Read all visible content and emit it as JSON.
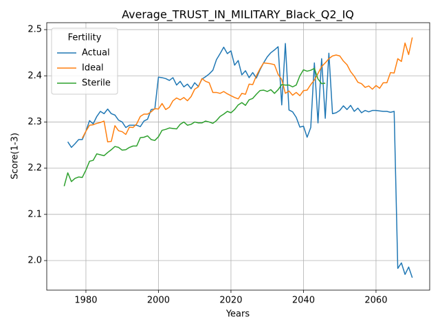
{
  "chart_data": {
    "type": "line",
    "title": "Average_TRUST_IN_MILITARY_Black_Q2_IQ",
    "xlabel": "Years",
    "ylabel": "Score(1-3)",
    "legend_title": "Fertility",
    "legend": "upper left",
    "grid": true,
    "x": [
      1974,
      1975,
      1976,
      1977,
      1978,
      1979,
      1980,
      1981,
      1982,
      1983,
      1984,
      1985,
      1986,
      1987,
      1988,
      1989,
      1990,
      1991,
      1992,
      1993,
      1994,
      1995,
      1996,
      1997,
      1998,
      1999,
      2000,
      2001,
      2002,
      2003,
      2004,
      2005,
      2006,
      2007,
      2008,
      2009,
      2010,
      2011,
      2012,
      2013,
      2014,
      2015,
      2016,
      2017,
      2018,
      2019,
      2020,
      2021,
      2022,
      2023,
      2024,
      2025,
      2026,
      2027,
      2028,
      2029,
      2030,
      2031,
      2032,
      2033,
      2034,
      2035,
      2036,
      2037,
      2038,
      2039,
      2040,
      2041,
      2042,
      2043,
      2044,
      2045,
      2046,
      2047,
      2048,
      2049,
      2050,
      2051,
      2052,
      2053,
      2054,
      2055,
      2056,
      2057,
      2058,
      2059,
      2060,
      2061,
      2062,
      2063,
      2064,
      2065,
      2066,
      2067,
      2068,
      2069,
      2070
    ],
    "xlim": [
      1969.2,
      2074.8
    ],
    "xticks": [
      1980,
      2000,
      2020,
      2040,
      2060
    ],
    "ylim": [
      1.936,
      2.515
    ],
    "yticks": [
      {
        "value": 2.0,
        "label": "2.0"
      },
      2.1,
      2.2,
      2.3,
      2.4,
      2.5
    ],
    "series": [
      {
        "name": "Actual",
        "color": "#1f77b4",
        "values": [
          null,
          2.257,
          2.245,
          2.253,
          2.262,
          2.262,
          2.28,
          2.303,
          2.296,
          2.312,
          2.323,
          2.318,
          2.328,
          2.318,
          2.315,
          2.304,
          2.3,
          2.288,
          2.293,
          2.293,
          2.293,
          2.29,
          2.302,
          2.306,
          2.327,
          2.328,
          2.397,
          2.396,
          2.394,
          2.39,
          2.396,
          2.38,
          2.388,
          2.376,
          2.382,
          2.372,
          2.385,
          2.377,
          2.393,
          2.398,
          2.404,
          2.412,
          2.435,
          2.448,
          2.462,
          2.448,
          2.454,
          2.423,
          2.433,
          2.402,
          2.411,
          2.396,
          2.407,
          2.395,
          2.413,
          2.428,
          2.441,
          2.45,
          2.456,
          2.463,
          2.337,
          2.47,
          2.326,
          2.322,
          2.31,
          2.289,
          2.291,
          2.267,
          2.288,
          2.428,
          2.298,
          2.437,
          2.308,
          2.449,
          2.318,
          2.32,
          2.325,
          2.335,
          2.327,
          2.336,
          2.323,
          2.33,
          2.32,
          2.325,
          2.322,
          2.325,
          2.325,
          2.324,
          2.323,
          2.323,
          2.321,
          2.323,
          1.983,
          1.995,
          1.97,
          1.986,
          1.963
        ]
      },
      {
        "name": "Ideal",
        "color": "#ff7f0e",
        "values": [
          null,
          null,
          null,
          null,
          null,
          2.265,
          2.28,
          2.293,
          2.294,
          2.297,
          2.299,
          2.302,
          2.257,
          2.258,
          2.292,
          2.281,
          2.279,
          2.273,
          2.289,
          2.288,
          2.296,
          2.312,
          2.317,
          2.317,
          2.322,
          2.329,
          2.328,
          2.34,
          2.327,
          2.332,
          2.346,
          2.352,
          2.348,
          2.353,
          2.346,
          2.355,
          2.371,
          2.376,
          2.394,
          2.388,
          2.385,
          2.364,
          2.364,
          2.362,
          2.366,
          2.361,
          2.357,
          2.353,
          2.35,
          2.362,
          2.36,
          2.382,
          2.381,
          2.4,
          2.415,
          2.428,
          2.427,
          2.426,
          2.424,
          2.403,
          2.392,
          2.362,
          2.367,
          2.358,
          2.364,
          2.357,
          2.368,
          2.369,
          2.381,
          2.391,
          2.405,
          2.42,
          2.428,
          2.437,
          2.443,
          2.445,
          2.443,
          2.432,
          2.424,
          2.409,
          2.399,
          2.386,
          2.383,
          2.375,
          2.378,
          2.371,
          2.379,
          2.373,
          2.385,
          2.385,
          2.407,
          2.406,
          2.437,
          2.431,
          2.471,
          2.446,
          2.483
        ]
      },
      {
        "name": "Sterile",
        "color": "#2ca02c",
        "values": [
          2.161,
          2.19,
          2.171,
          2.178,
          2.181,
          2.18,
          2.196,
          2.215,
          2.217,
          2.231,
          2.229,
          2.227,
          2.234,
          2.24,
          2.247,
          2.245,
          2.239,
          2.24,
          2.245,
          2.248,
          2.248,
          2.266,
          2.267,
          2.27,
          2.262,
          2.26,
          2.268,
          2.282,
          2.284,
          2.287,
          2.286,
          2.285,
          2.295,
          2.3,
          2.293,
          2.295,
          2.3,
          2.298,
          2.298,
          2.302,
          2.3,
          2.297,
          2.303,
          2.312,
          2.317,
          2.323,
          2.32,
          2.327,
          2.337,
          2.342,
          2.336,
          2.348,
          2.351,
          2.36,
          2.368,
          2.369,
          2.366,
          2.37,
          2.362,
          2.37,
          2.381,
          2.38,
          2.38,
          2.376,
          2.38,
          2.4,
          2.413,
          2.41,
          2.412,
          2.416,
          2.393,
          2.383,
          2.384,
          null,
          null,
          null,
          null,
          null,
          null,
          null,
          null,
          null,
          null,
          null,
          null,
          null,
          null,
          null,
          null,
          null,
          null,
          null,
          null,
          null,
          null,
          null,
          null
        ]
      }
    ]
  }
}
